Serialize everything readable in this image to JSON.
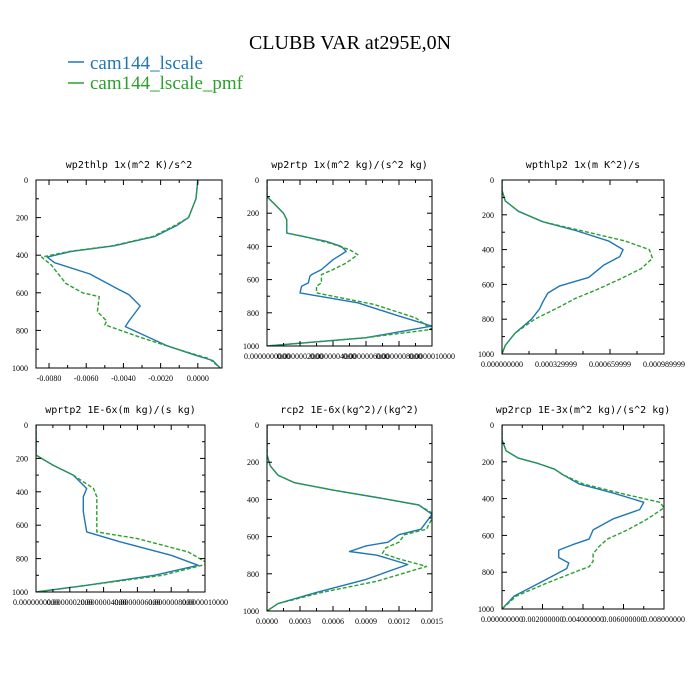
{
  "title": "CLUBB VAR at295E,0N",
  "legend": [
    {
      "name": "cam144_lscale",
      "color": "#1f77b4",
      "dash": false
    },
    {
      "name": "cam144_lscale_pmf",
      "color": "#2ca02c",
      "dash": true
    }
  ],
  "chart_data": [
    {
      "type": "line",
      "title": "wp2thlp   1x(m^2 K)/s^2",
      "ylim": [
        1000,
        0
      ],
      "xlim": [
        -0.0087,
        0.0013
      ],
      "yticks": [
        0,
        200,
        400,
        600,
        800,
        1000
      ],
      "ytick_labels": [
        "0",
        "200",
        "400",
        "600",
        "800",
        "1000"
      ],
      "xticks": [
        -0.008,
        -0.006,
        -0.004,
        -0.002,
        0.0
      ],
      "xtick_labels": [
        "-0.0080",
        "-0.0060",
        "-0.0040",
        "-0.0020",
        "0.0000"
      ],
      "series": [
        {
          "name": "cam144_lscale",
          "x": [
            0.0,
            -0.0001,
            -0.0005,
            -0.0011,
            -0.0023,
            -0.0045,
            -0.0068,
            -0.0081,
            -0.0077,
            -0.0058,
            -0.0043,
            -0.0037,
            -0.0031,
            -0.0037,
            -0.0039,
            -0.0017,
            -0.0002,
            0.0008,
            0.0012
          ],
          "y": [
            0,
            100,
            200,
            240,
            300,
            350,
            380,
            410,
            440,
            500,
            580,
            610,
            670,
            750,
            780,
            880,
            930,
            960,
            1000
          ]
        },
        {
          "name": "cam144_lscale_pmf",
          "x": [
            0.0,
            -0.0001,
            -0.0005,
            -0.0012,
            -0.0024,
            -0.0046,
            -0.0069,
            -0.0084,
            -0.0079,
            -0.0071,
            -0.0062,
            -0.0053,
            -0.0054,
            -0.0049,
            -0.005,
            -0.003,
            -0.0011,
            0.0006,
            0.0012
          ],
          "y": [
            0,
            100,
            200,
            240,
            300,
            350,
            380,
            410,
            450,
            550,
            600,
            620,
            700,
            750,
            770,
            840,
            900,
            950,
            1000
          ]
        }
      ]
    },
    {
      "type": "line",
      "title": "wp2rtp  1x(m^2 kg)/(s^2 kg)",
      "ylim": [
        1000,
        0
      ],
      "xlim": [
        0.0,
        1e-06
      ],
      "yticks": [
        0,
        200,
        400,
        600,
        800,
        1000
      ],
      "ytick_labels": [
        "0",
        "200",
        "400",
        "600",
        "800",
        "1000"
      ],
      "xticks": [
        0.0,
        2e-07,
        4e-07,
        6e-07,
        8e-07,
        1e-06
      ],
      "xtick_labels": [
        "0.0000000000",
        "0.0000002000",
        "0.0000004000",
        "0.0000006000",
        "0.0000008000",
        "0.0000010000"
      ],
      "series": [
        {
          "name": "cam144_lscale",
          "x": [
            0.0,
            0.0,
            5e-08,
            1e-07,
            1.2e-07,
            1.2e-07,
            2.2e-07,
            3.6e-07,
            4.5e-07,
            4.8e-07,
            4e-07,
            3.3e-07,
            2.7e-07,
            2.6e-07,
            2.5e-07,
            2.1e-07,
            2e-07,
            5.5e-07,
            8e-07,
            1e-06,
            6e-07,
            0.0
          ],
          "y": [
            0,
            100,
            150,
            200,
            240,
            320,
            340,
            370,
            400,
            430,
            480,
            540,
            570,
            580,
            620,
            640,
            680,
            740,
            820,
            880,
            950,
            1000
          ]
        },
        {
          "name": "cam144_lscale_pmf",
          "x": [
            0.0,
            0.0,
            5e-08,
            1e-07,
            1.2e-07,
            1.2e-07,
            2.2e-07,
            3.8e-07,
            5e-07,
            5.5e-07,
            4.8e-07,
            4e-07,
            3.3e-07,
            3.3e-07,
            3.3e-07,
            3e-07,
            3e-07,
            6.5e-07,
            9e-07,
            1e-06,
            6e-07,
            0.0
          ],
          "y": [
            0,
            100,
            150,
            200,
            240,
            320,
            340,
            380,
            420,
            450,
            500,
            540,
            570,
            590,
            620,
            640,
            680,
            750,
            830,
            900,
            950,
            1000
          ]
        }
      ]
    },
    {
      "type": "line",
      "title": "wpthlp2  1x(m K^2)/s",
      "ylim": [
        1000,
        0
      ],
      "xlim": [
        0.0,
        0.00099
      ],
      "yticks": [
        0,
        200,
        400,
        600,
        800,
        1000
      ],
      "ytick_labels": [
        "0",
        "200",
        "400",
        "600",
        "800",
        "1000"
      ],
      "xticks": [
        0.0,
        0.00033,
        0.00066,
        0.00099
      ],
      "xtick_labels": [
        "0.000000000",
        "0.000329999",
        "0.000659999",
        "0.000989999"
      ],
      "series": [
        {
          "name": "cam144_lscale",
          "x": [
            0.0,
            0.0,
            2e-05,
            0.0001,
            0.00025,
            0.00045,
            0.00065,
            0.00074,
            0.00072,
            0.00062,
            0.00053,
            0.00035,
            0.00028,
            0.00025,
            0.00023,
            0.00018,
            8e-05,
            2e-05,
            0.0
          ],
          "y": [
            0,
            60,
            120,
            180,
            240,
            290,
            350,
            400,
            440,
            490,
            560,
            610,
            650,
            700,
            740,
            800,
            880,
            950,
            1000
          ]
        },
        {
          "name": "cam144_lscale_pmf",
          "x": [
            0.0,
            0.0,
            2e-05,
            0.0001,
            0.00025,
            0.00048,
            0.00075,
            0.0009,
            0.00092,
            0.00085,
            0.00072,
            0.00058,
            0.00045,
            0.00035,
            0.0002,
            8e-05,
            2e-05,
            0.0
          ],
          "y": [
            0,
            60,
            120,
            180,
            240,
            290,
            350,
            400,
            450,
            510,
            570,
            630,
            680,
            730,
            800,
            880,
            950,
            1000
          ]
        }
      ]
    },
    {
      "type": "line",
      "title": "wprtp2  1E-6x(m kg)/(s kg)",
      "ylim": [
        1000,
        0
      ],
      "xlim": [
        0.0,
        1e-06
      ],
      "yticks": [
        0,
        200,
        400,
        600,
        800,
        1000
      ],
      "ytick_labels": [
        "0",
        "200",
        "400",
        "600",
        "800",
        "1000"
      ],
      "xticks": [
        0.0,
        2e-07,
        4e-07,
        6e-07,
        8e-07,
        1e-06
      ],
      "xtick_labels": [
        "0.0000000000",
        "0.0000002000",
        "0.0000004000",
        "0.0000006000",
        "0.0000008000",
        "0.0000010000"
      ],
      "series": [
        {
          "name": "cam144_lscale",
          "x": [
            0.0,
            0.0,
            1e-07,
            2.2e-07,
            3e-07,
            2.8e-07,
            2.8e-07,
            3e-07,
            5e-07,
            8e-07,
            9.6e-07,
            7e-07,
            3e-07,
            0.0
          ],
          "y": [
            0,
            180,
            240,
            300,
            380,
            430,
            520,
            640,
            700,
            780,
            840,
            900,
            960,
            1000
          ]
        },
        {
          "name": "cam144_lscale_pmf",
          "x": [
            0.0,
            0.0,
            1e-07,
            2.2e-07,
            3.4e-07,
            3.6e-07,
            3.6e-07,
            3.6e-07,
            6e-07,
            9e-07,
            1.02e-06,
            7.5e-07,
            3e-07,
            0.0
          ],
          "y": [
            0,
            180,
            240,
            300,
            380,
            430,
            520,
            640,
            680,
            760,
            830,
            900,
            960,
            1000
          ]
        }
      ]
    },
    {
      "type": "line",
      "title": "rcp2   1E-6x(kg^2)/(kg^2)",
      "ylim": [
        1000,
        0
      ],
      "xlim": [
        0.0,
        0.0015
      ],
      "yticks": [
        0,
        200,
        400,
        600,
        800,
        1000
      ],
      "ytick_labels": [
        "0",
        "200",
        "400",
        "600",
        "800",
        "1000"
      ],
      "xticks": [
        0.0,
        0.0003,
        0.0006,
        0.0009,
        0.0012,
        0.0015
      ],
      "xtick_labels": [
        "0.0000",
        "0.0003",
        "0.0006",
        "0.0009",
        "0.0012",
        "0.0015"
      ],
      "series": [
        {
          "name": "cam144_lscale",
          "x": [
            0.0,
            0.0,
            3e-05,
            0.0001,
            0.00025,
            0.0006,
            0.001,
            0.00138,
            0.0015,
            0.0014,
            0.0012,
            0.0011,
            0.0009,
            0.00075,
            0.001,
            0.00128,
            0.0009,
            0.00045,
            0.0001,
            0.0
          ],
          "y": [
            0,
            160,
            220,
            270,
            310,
            350,
            390,
            430,
            480,
            560,
            590,
            630,
            650,
            680,
            700,
            750,
            830,
            900,
            960,
            1000
          ]
        },
        {
          "name": "cam144_lscale_pmf",
          "x": [
            0.0,
            0.0,
            3e-05,
            0.0001,
            0.00025,
            0.0006,
            0.001,
            0.00138,
            0.00152,
            0.00145,
            0.00125,
            0.0012,
            0.00108,
            0.00105,
            0.0012,
            0.00145,
            0.001,
            0.0005,
            0.0001,
            0.0
          ],
          "y": [
            0,
            160,
            220,
            270,
            310,
            350,
            390,
            430,
            480,
            560,
            590,
            630,
            660,
            690,
            720,
            760,
            840,
            900,
            960,
            1000
          ]
        }
      ]
    },
    {
      "type": "line",
      "title": "wp2rcp  1E-3x(m^2 kg)/(s^2 kg)",
      "ylim": [
        1000,
        0
      ],
      "xlim": [
        0.0,
        0.008
      ],
      "yticks": [
        0,
        200,
        400,
        600,
        800,
        1000
      ],
      "ytick_labels": [
        "0",
        "200",
        "400",
        "600",
        "800",
        "1000"
      ],
      "xticks": [
        0.0,
        0.002,
        0.004,
        0.006,
        0.008
      ],
      "xtick_labels": [
        "0.000000000",
        "0.002000000",
        "0.004000000",
        "0.006000000",
        "0.008000000"
      ],
      "series": [
        {
          "name": "cam144_lscale",
          "x": [
            0.0,
            0.0,
            0.0002,
            0.0008,
            0.0018,
            0.0026,
            0.003,
            0.0038,
            0.0055,
            0.007,
            0.0068,
            0.0055,
            0.0045,
            0.0043,
            0.0035,
            0.0028,
            0.0028,
            0.0033,
            0.0032,
            0.002,
            0.0006,
            0.0
          ],
          "y": [
            0,
            80,
            140,
            180,
            210,
            240,
            270,
            320,
            370,
            420,
            460,
            510,
            570,
            620,
            650,
            680,
            720,
            750,
            780,
            850,
            930,
            1000
          ]
        },
        {
          "name": "cam144_lscale_pmf",
          "x": [
            0.0,
            0.0,
            0.0002,
            0.0008,
            0.0018,
            0.0026,
            0.003,
            0.004,
            0.0062,
            0.0078,
            0.008,
            0.0072,
            0.0062,
            0.0052,
            0.0048,
            0.0045,
            0.0045,
            0.0043,
            0.0038,
            0.0022,
            0.0007,
            0.0
          ],
          "y": [
            0,
            80,
            140,
            180,
            210,
            240,
            270,
            320,
            380,
            420,
            450,
            510,
            570,
            620,
            660,
            700,
            740,
            770,
            790,
            860,
            930,
            1000
          ]
        }
      ]
    }
  ]
}
